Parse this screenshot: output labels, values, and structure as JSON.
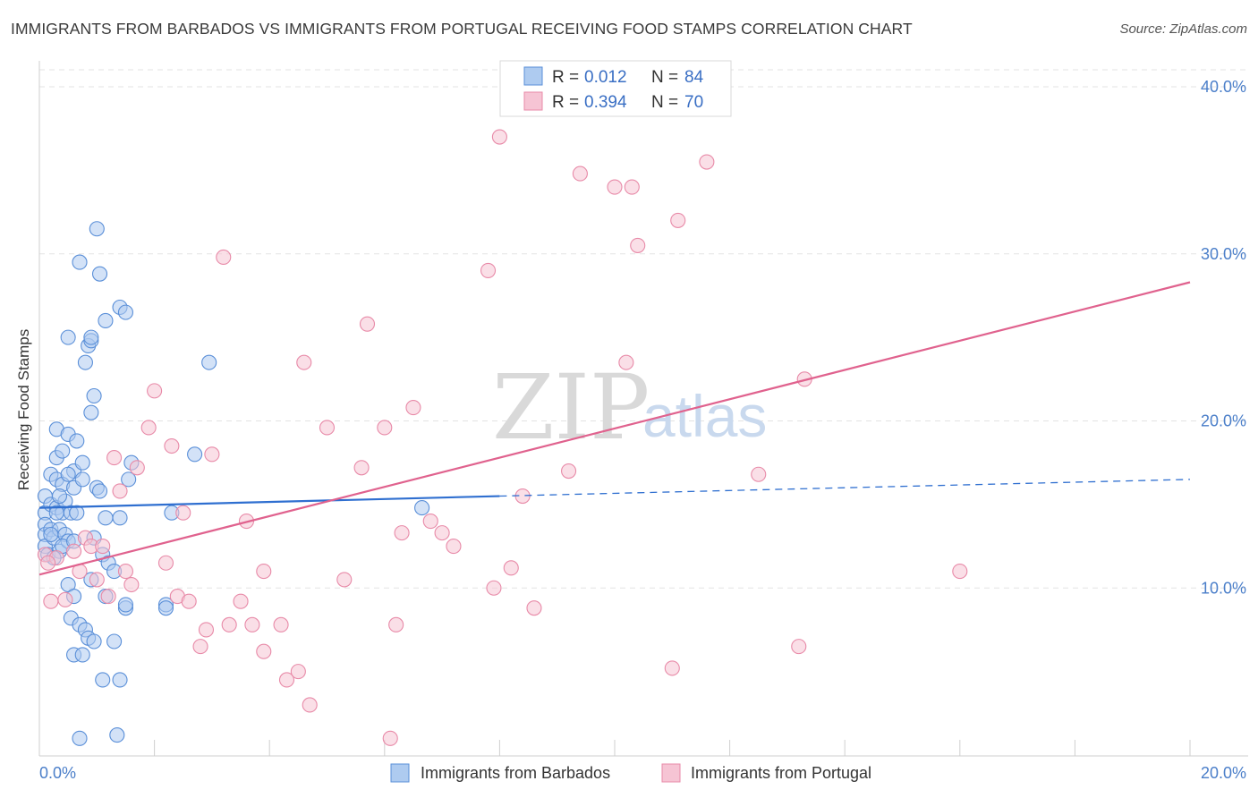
{
  "title": "IMMIGRANTS FROM BARBADOS VS IMMIGRANTS FROM PORTUGAL RECEIVING FOOD STAMPS CORRELATION CHART",
  "source": "Source: ZipAtlas.com",
  "watermark": {
    "zip": "ZIP",
    "atlas": "atlas"
  },
  "legend": {
    "rows": [
      {
        "r_label": "R =",
        "r_value": "0.012",
        "n_label": "N =",
        "n_value": "84"
      },
      {
        "r_label": "R =",
        "r_value": "0.394",
        "n_label": "N =",
        "n_value": "70"
      }
    ]
  },
  "bottom_legend": {
    "items": [
      "Immigrants from Barbados",
      "Immigrants from Portugal"
    ]
  },
  "chart_data": {
    "type": "scatter",
    "title": "IMMIGRANTS FROM BARBADOS VS IMMIGRANTS FROM PORTUGAL RECEIVING FOOD STAMPS CORRELATION CHART",
    "xlabel": "",
    "ylabel": "Receiving Food Stamps",
    "xlim": [
      0,
      20
    ],
    "ylim": [
      0,
      40
    ],
    "x_tick_labels": [
      "0.0%",
      "20.0%"
    ],
    "y_ticks": [
      10,
      20,
      30,
      40
    ],
    "y_tick_labels": [
      "10.0%",
      "20.0%",
      "30.0%",
      "40.0%"
    ],
    "grid": true,
    "legend_position": "top-center",
    "colors": {
      "barbados_fill": "#aecbf0",
      "barbados_stroke": "#5a8fd8",
      "barbados_line": "#2f6fd0",
      "portugal_fill": "#f6c4d4",
      "portugal_stroke": "#e88aa8",
      "portugal_line": "#e0628e",
      "axis_text": "#4a7ec9",
      "grid": "#e3e3e3"
    },
    "series": [
      {
        "name": "Immigrants from Barbados",
        "r": 0.012,
        "n": 84,
        "trend": {
          "x0": 0,
          "y0": 14.8,
          "x1": 8.0,
          "y1": 15.5,
          "dashed_to_x": 20,
          "dashed_to_y": 16.5
        },
        "points": [
          [
            0.1,
            15.5
          ],
          [
            0.1,
            14.5
          ],
          [
            0.1,
            13.8
          ],
          [
            0.1,
            13.2
          ],
          [
            0.1,
            12.5
          ],
          [
            0.15,
            12.0
          ],
          [
            0.2,
            16.8
          ],
          [
            0.2,
            15.0
          ],
          [
            0.2,
            13.5
          ],
          [
            0.25,
            13.0
          ],
          [
            0.3,
            19.5
          ],
          [
            0.3,
            17.8
          ],
          [
            0.3,
            16.5
          ],
          [
            0.3,
            14.8
          ],
          [
            0.35,
            13.5
          ],
          [
            0.35,
            12.2
          ],
          [
            0.4,
            18.2
          ],
          [
            0.4,
            16.2
          ],
          [
            0.4,
            14.5
          ],
          [
            0.45,
            15.2
          ],
          [
            0.45,
            13.2
          ],
          [
            0.5,
            19.2
          ],
          [
            0.5,
            10.2
          ],
          [
            0.5,
            12.8
          ],
          [
            0.5,
            25.0
          ],
          [
            0.55,
            8.2
          ],
          [
            0.55,
            14.5
          ],
          [
            0.6,
            17.0
          ],
          [
            0.6,
            16.0
          ],
          [
            0.6,
            9.5
          ],
          [
            0.6,
            6.0
          ],
          [
            0.65,
            18.8
          ],
          [
            0.65,
            14.5
          ],
          [
            0.7,
            29.5
          ],
          [
            0.7,
            7.8
          ],
          [
            0.7,
            1.0
          ],
          [
            0.75,
            17.5
          ],
          [
            0.75,
            16.5
          ],
          [
            0.75,
            6.0
          ],
          [
            0.8,
            23.5
          ],
          [
            0.8,
            7.5
          ],
          [
            0.85,
            24.5
          ],
          [
            0.85,
            7.0
          ],
          [
            0.9,
            24.8
          ],
          [
            0.9,
            25.0
          ],
          [
            0.9,
            20.5
          ],
          [
            0.9,
            10.5
          ],
          [
            0.95,
            21.5
          ],
          [
            0.95,
            13.0
          ],
          [
            0.95,
            6.8
          ],
          [
            1.0,
            31.5
          ],
          [
            1.0,
            16.0
          ],
          [
            1.05,
            28.8
          ],
          [
            1.05,
            15.8
          ],
          [
            1.1,
            12.0
          ],
          [
            1.1,
            4.5
          ],
          [
            1.15,
            26.0
          ],
          [
            1.15,
            14.2
          ],
          [
            1.15,
            9.5
          ],
          [
            1.2,
            11.5
          ],
          [
            1.3,
            11.0
          ],
          [
            1.3,
            6.8
          ],
          [
            1.35,
            1.2
          ],
          [
            1.4,
            14.2
          ],
          [
            1.4,
            4.5
          ],
          [
            1.4,
            26.8
          ],
          [
            1.5,
            26.5
          ],
          [
            1.5,
            8.8
          ],
          [
            1.5,
            9.0
          ],
          [
            1.55,
            16.5
          ],
          [
            1.6,
            17.5
          ],
          [
            2.2,
            9.0
          ],
          [
            2.2,
            8.8
          ],
          [
            2.3,
            14.5
          ],
          [
            2.7,
            18.0
          ],
          [
            2.95,
            23.5
          ],
          [
            6.65,
            14.8
          ],
          [
            0.2,
            13.2
          ],
          [
            0.3,
            14.5
          ],
          [
            0.4,
            12.5
          ],
          [
            0.5,
            16.8
          ],
          [
            0.6,
            12.8
          ],
          [
            0.25,
            11.8
          ],
          [
            0.35,
            15.5
          ]
        ]
      },
      {
        "name": "Immigrants from Portugal",
        "r": 0.394,
        "n": 70,
        "trend": {
          "x0": 0,
          "y0": 10.8,
          "x1": 20,
          "y1": 28.3
        },
        "points": [
          [
            0.1,
            12.0
          ],
          [
            0.2,
            9.2
          ],
          [
            0.3,
            11.8
          ],
          [
            0.45,
            9.3
          ],
          [
            0.7,
            11.0
          ],
          [
            0.8,
            13.0
          ],
          [
            0.9,
            12.5
          ],
          [
            1.0,
            10.5
          ],
          [
            1.1,
            12.5
          ],
          [
            1.2,
            9.5
          ],
          [
            1.3,
            17.8
          ],
          [
            1.4,
            15.8
          ],
          [
            1.5,
            11.0
          ],
          [
            1.6,
            10.2
          ],
          [
            1.7,
            17.2
          ],
          [
            1.9,
            19.6
          ],
          [
            2.0,
            21.8
          ],
          [
            2.2,
            11.5
          ],
          [
            2.3,
            18.5
          ],
          [
            2.4,
            9.5
          ],
          [
            2.5,
            14.5
          ],
          [
            2.6,
            9.2
          ],
          [
            2.8,
            6.5
          ],
          [
            2.9,
            7.5
          ],
          [
            3.0,
            18.0
          ],
          [
            3.2,
            29.8
          ],
          [
            3.3,
            7.8
          ],
          [
            3.5,
            9.2
          ],
          [
            3.6,
            14.0
          ],
          [
            3.7,
            7.8
          ],
          [
            3.9,
            11.0
          ],
          [
            3.9,
            6.2
          ],
          [
            4.2,
            7.8
          ],
          [
            4.3,
            4.5
          ],
          [
            4.5,
            5.0
          ],
          [
            4.6,
            23.5
          ],
          [
            4.7,
            3.0
          ],
          [
            5.0,
            19.6
          ],
          [
            5.3,
            10.5
          ],
          [
            5.6,
            17.2
          ],
          [
            5.7,
            25.8
          ],
          [
            6.0,
            19.6
          ],
          [
            6.1,
            1.0
          ],
          [
            6.2,
            7.8
          ],
          [
            6.3,
            13.3
          ],
          [
            6.5,
            20.8
          ],
          [
            6.8,
            14.0
          ],
          [
            7.0,
            13.3
          ],
          [
            7.2,
            12.5
          ],
          [
            7.8,
            29.0
          ],
          [
            7.9,
            10.0
          ],
          [
            8.0,
            37.0
          ],
          [
            8.2,
            11.2
          ],
          [
            8.4,
            15.5
          ],
          [
            8.6,
            8.8
          ],
          [
            9.2,
            17.0
          ],
          [
            9.4,
            34.8
          ],
          [
            10.0,
            34.0
          ],
          [
            10.2,
            23.5
          ],
          [
            10.3,
            34.0
          ],
          [
            10.4,
            30.5
          ],
          [
            11.0,
            5.2
          ],
          [
            11.1,
            32.0
          ],
          [
            11.6,
            35.5
          ],
          [
            12.5,
            16.8
          ],
          [
            13.2,
            6.5
          ],
          [
            13.3,
            22.5
          ],
          [
            16.0,
            11.0
          ],
          [
            0.15,
            11.5
          ],
          [
            0.6,
            12.2
          ]
        ]
      }
    ]
  }
}
